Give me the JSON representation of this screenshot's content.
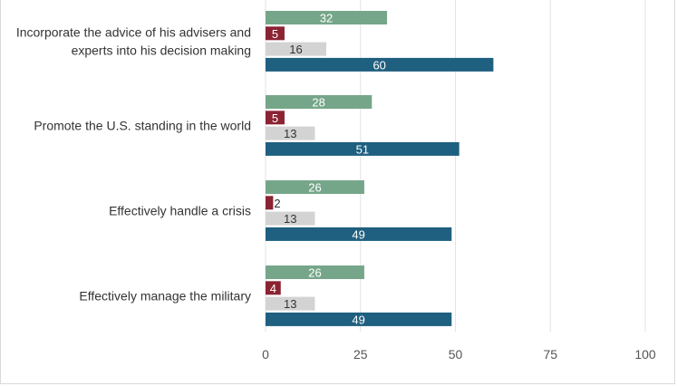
{
  "chart_data": {
    "type": "bar",
    "orientation": "horizontal",
    "categories": [
      [
        "Incorporate the advice of his advisers and",
        "experts into his decision making"
      ],
      [
        "Promote the U.S. standing in the world"
      ],
      [
        "Effectively handle a crisis"
      ],
      [
        "Effectively manage the military"
      ]
    ],
    "series": [
      {
        "color": "#76a68a",
        "label_color": "#ffffff",
        "values": [
          32,
          28,
          26,
          26
        ]
      },
      {
        "color": "#8b2332",
        "label_color": "#ffffff",
        "values": [
          5,
          5,
          2,
          4
        ]
      },
      {
        "color": "#d3d3d3",
        "label_color": "#333333",
        "values": [
          16,
          13,
          13,
          13
        ]
      },
      {
        "color": "#1f5f7f",
        "label_color": "#ffffff",
        "values": [
          60,
          51,
          49,
          49
        ]
      }
    ],
    "xlim": [
      0,
      100
    ],
    "xticks": [
      0,
      25,
      50,
      75,
      100
    ],
    "grid": true,
    "title": "",
    "xlabel": "",
    "ylabel": ""
  }
}
